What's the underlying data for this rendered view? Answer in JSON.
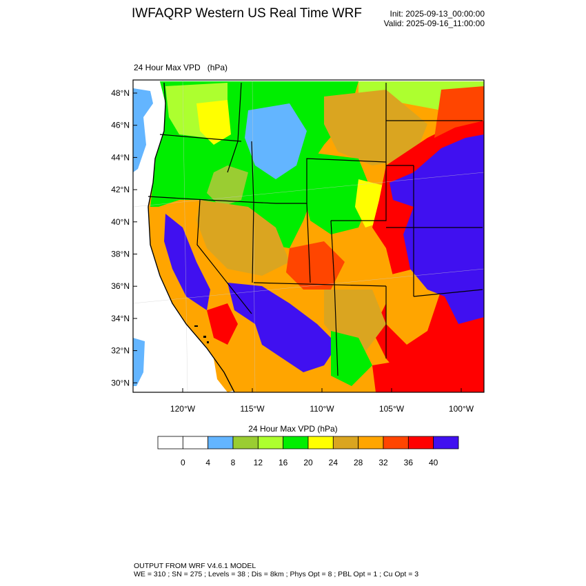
{
  "header": {
    "title": "IWFAQRP Western US Real Time WRF",
    "init": "Init: 2025-09-13_00:00:00",
    "valid": "Valid: 2025-09-16_11:00:00"
  },
  "map": {
    "field_name": "24 Hour Max VPD",
    "field_units": "(hPa)",
    "lat_labels": [
      "48°N",
      "46°N",
      "44°N",
      "42°N",
      "40°N",
      "38°N",
      "36°N",
      "34°N",
      "32°N",
      "30°N"
    ],
    "lon_labels": [
      "120°W",
      "115°W",
      "110°W",
      "105°W",
      "100°W"
    ],
    "ocean_color": "#ffffff"
  },
  "colorbar": {
    "title": "24 Hour Max VPD  (hPa)",
    "tick_labels": [
      "0",
      "4",
      "8",
      "12",
      "16",
      "20",
      "24",
      "28",
      "32",
      "36",
      "40"
    ],
    "colors": [
      "#ffffff",
      "#ffffff",
      "#63b5ff",
      "#9acd32",
      "#adff2f",
      "#00ee00",
      "#ffff00",
      "#daa520",
      "#ffa500",
      "#ff4500",
      "#ff0000",
      "#4010f0"
    ]
  },
  "footer": {
    "line1": "OUTPUT FROM WRF V4.6.1 MODEL",
    "line2": "WE = 310 ; SN = 275 ; Levels = 38 ; Dis = 8km ; Phys Opt = 8 ; PBL Opt = 1 ; Cu Opt = 3"
  }
}
